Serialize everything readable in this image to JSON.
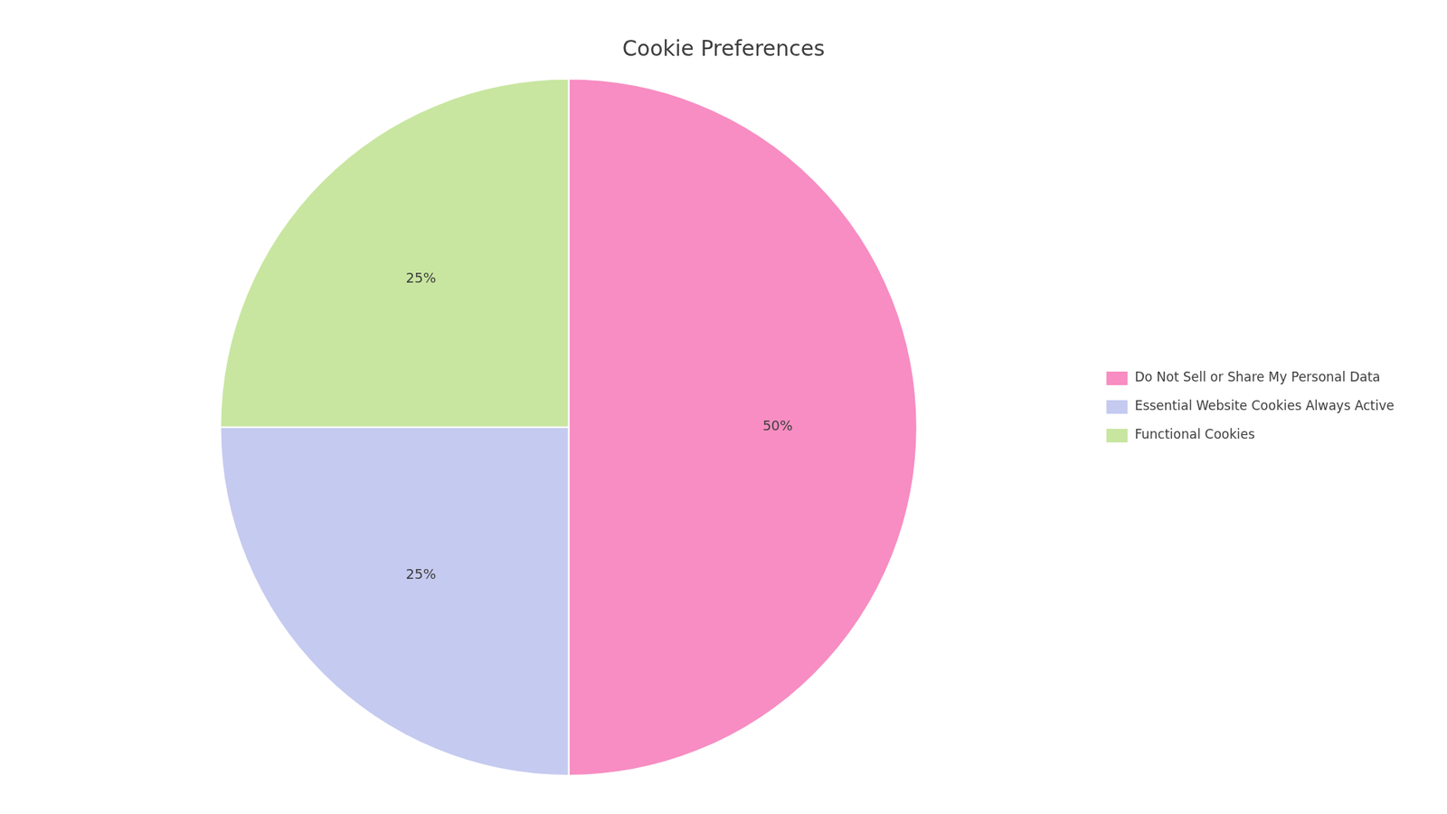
{
  "chart_data": {
    "type": "pie",
    "title": "Cookie Preferences",
    "categories": [
      "Do Not Sell or Share My Personal Data",
      "Essential Website Cookies Always Active",
      "Functional Cookies"
    ],
    "values": [
      50,
      25,
      25
    ],
    "value_labels": [
      "50%",
      "25%",
      "25%"
    ],
    "colors": [
      "#F78DC2",
      "#C5CAF0",
      "#C8E6A0"
    ],
    "data_labels": true,
    "legend": "right"
  }
}
